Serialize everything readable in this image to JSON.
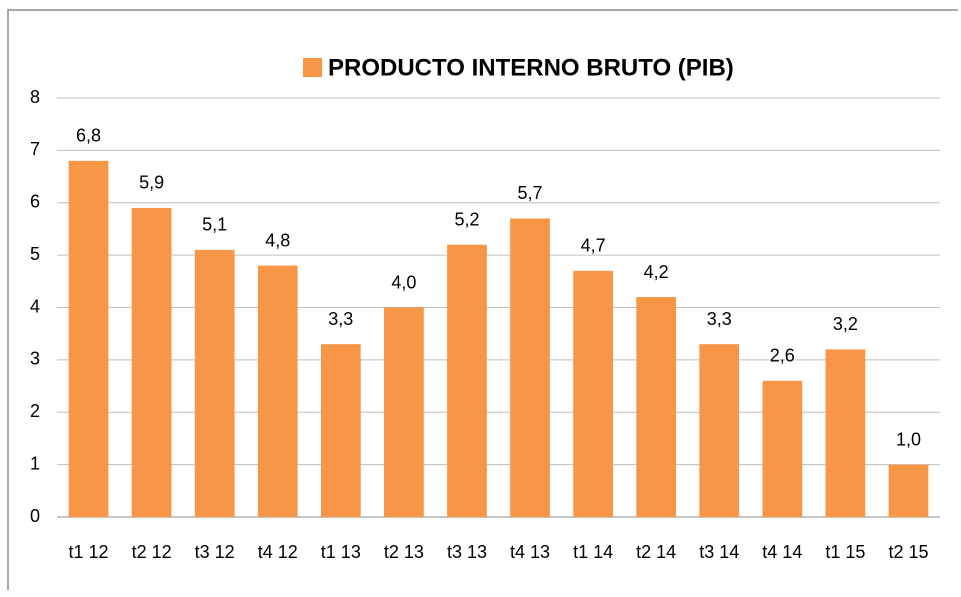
{
  "chart_data": {
    "type": "bar",
    "series": [
      {
        "name": "PRODUCTO INTERNO BRUTO (PIB)",
        "color": "#f79646",
        "values": [
          6.8,
          5.9,
          5.1,
          4.8,
          3.3,
          4.0,
          5.2,
          5.7,
          4.7,
          4.2,
          3.3,
          2.6,
          3.2,
          1.0
        ],
        "value_labels": [
          "6,8",
          "5,9",
          "5,1",
          "4,8",
          "3,3",
          "4,0",
          "5,2",
          "5,7",
          "4,7",
          "4,2",
          "3,3",
          "2,6",
          "3,2",
          "1,0"
        ]
      }
    ],
    "categories": [
      "t1 12",
      "t2 12",
      "t3 12",
      "t4 12",
      "t1 13",
      "t2 13",
      "t3 13",
      "t4 13",
      "t1 14",
      "t2 14",
      "t3 14",
      "t4 14",
      "t1 15",
      "t2 15"
    ],
    "ylim": [
      0,
      8
    ],
    "yticks": [
      0,
      1,
      2,
      3,
      4,
      5,
      6,
      7,
      8
    ],
    "grid": true,
    "legend": "top"
  }
}
